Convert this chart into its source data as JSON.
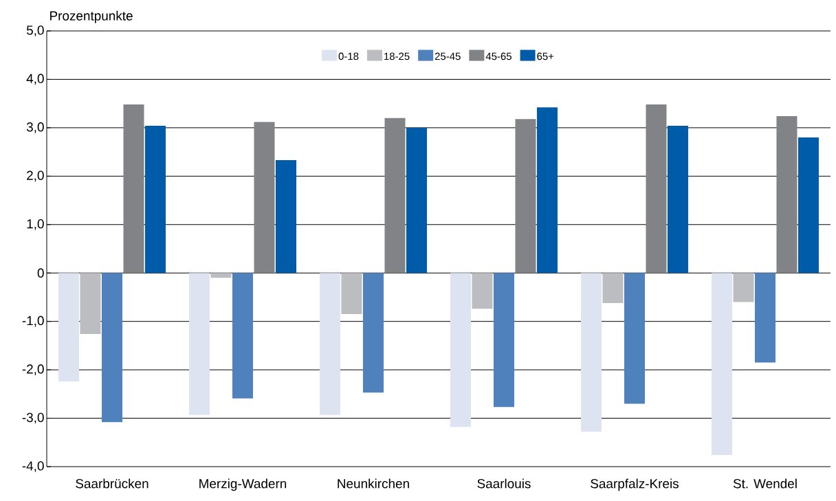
{
  "chart_data": {
    "type": "bar",
    "ylabel": "Prozentpunkte",
    "categories": [
      "Saarbrücken",
      "Merzig-Wadern",
      "Neunkirchen",
      "Saarlouis",
      "Saarpfalz-Kreis",
      "St. Wendel"
    ],
    "series": [
      {
        "name": "0-18",
        "color": "#dde3f0",
        "values": [
          -2.24,
          -2.93,
          -2.93,
          -3.18,
          -3.28,
          -3.76
        ]
      },
      {
        "name": "18-25",
        "color": "#bcbdc1",
        "values": [
          -1.26,
          -0.1,
          -0.85,
          -0.74,
          -0.62,
          -0.6
        ]
      },
      {
        "name": "25-45",
        "color": "#4f81bd",
        "values": [
          -3.08,
          -2.59,
          -2.47,
          -2.77,
          -2.7,
          -1.85
        ]
      },
      {
        "name": "45-65",
        "color": "#828386",
        "values": [
          3.48,
          3.12,
          3.2,
          3.18,
          3.48,
          3.24
        ]
      },
      {
        "name": "65+",
        "color": "#005ca9",
        "values": [
          3.04,
          2.33,
          3.0,
          3.42,
          3.04,
          2.8
        ]
      }
    ],
    "ylim": [
      -4,
      5
    ],
    "yticks": [
      {
        "value": -4,
        "label": "-4,0"
      },
      {
        "value": -3,
        "label": "-3,0"
      },
      {
        "value": -2,
        "label": "-2,0"
      },
      {
        "value": -1,
        "label": "-1,0"
      },
      0,
      {
        "value": 1,
        "label": "1,0"
      },
      {
        "value": 2,
        "label": "2,0"
      },
      {
        "value": 3,
        "label": "3,0"
      },
      {
        "value": 4,
        "label": "4,0"
      },
      {
        "value": 5,
        "label": "5,0"
      }
    ],
    "grid": "y",
    "legend": "top"
  }
}
